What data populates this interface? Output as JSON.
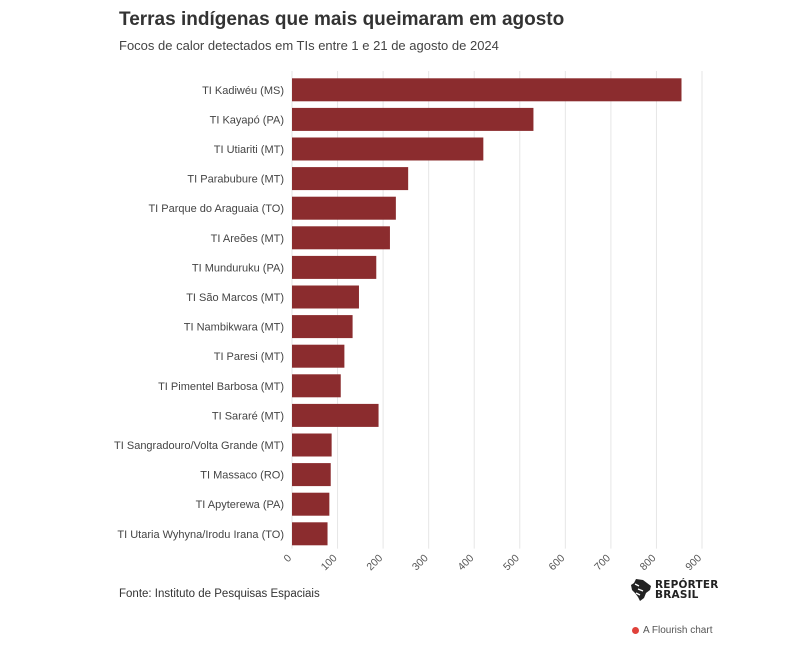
{
  "header": {
    "title": "Terras indígenas que mais queimaram em agosto",
    "subtitle": "Focos de calor detectados em TIs entre 1 e 21 de agosto de 2024"
  },
  "footer": {
    "source": "Fonte: Instituto de Pesquisas Espaciais",
    "brand_line1": "REPÓRTER",
    "brand_line2": "BRASIL",
    "credit": "A Flourish chart"
  },
  "colors": {
    "bar": "#8b2c2e",
    "grid": "#e6e6e6",
    "text": "#444444",
    "credit_dot": "#e0413a"
  },
  "chart_data": {
    "type": "bar",
    "orientation": "horizontal",
    "categories": [
      "TI Kadiwéu (MS)",
      "TI Kayapó (PA)",
      "TI Utiariti (MT)",
      "TI Parabubure (MT)",
      "TI Parque do Araguaia (TO)",
      "TI Areões (MT)",
      "TI Munduruku (PA)",
      "TI São Marcos (MT)",
      "TI Nambikwara (MT)",
      "TI Paresi (MT)",
      "TI Pimentel Barbosa (MT)",
      "TI Sararé (MT)",
      "TI Sangradouro/Volta Grande (MT)",
      "TI Massaco (RO)",
      "TI Apyterewa (PA)",
      "TI Utaria Wyhyna/Irodu Irana (TO)"
    ],
    "values": [
      855,
      530,
      420,
      255,
      228,
      215,
      185,
      147,
      133,
      115,
      107,
      190,
      87,
      85,
      82,
      78
    ],
    "xlim": [
      0,
      900
    ],
    "xticks": [
      0,
      100,
      200,
      300,
      400,
      500,
      600,
      700,
      800,
      900
    ],
    "grid": true
  }
}
